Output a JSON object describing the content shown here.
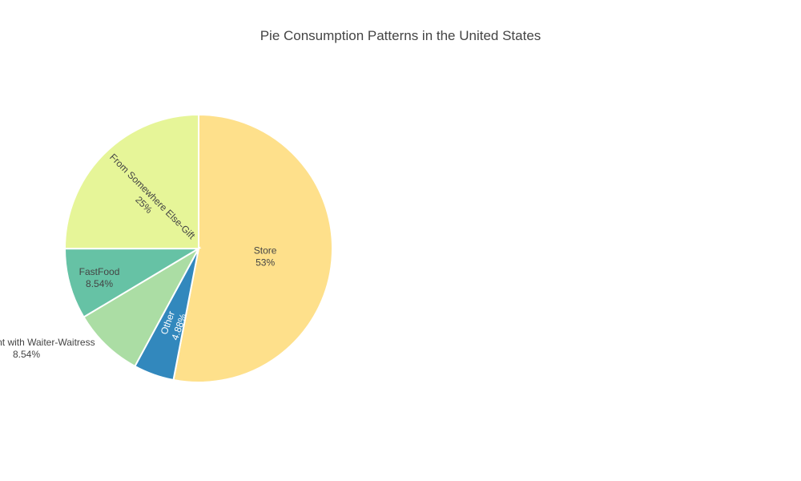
{
  "chart_data": {
    "type": "pie",
    "title": "Pie Consumption Patterns in the United States",
    "direction": "clockwise",
    "start": "12 o'clock",
    "slices": [
      {
        "label": "Store",
        "value": 53,
        "percent_text": "53%",
        "color": "#fee08b"
      },
      {
        "label": "Other",
        "value": 4.88,
        "percent_text": "4.88%",
        "color": "#3288bd"
      },
      {
        "label": "Restaurant with Waiter-Waitress",
        "value": 8.54,
        "percent_text": "8.54%",
        "color": "#abdda4"
      },
      {
        "label": "FastFood",
        "value": 8.54,
        "percent_text": "8.54%",
        "color": "#66c2a5"
      },
      {
        "label": "From Somewhere Else-Gift",
        "value": 25,
        "percent_text": "25%",
        "color": "#e6f598"
      }
    ]
  }
}
